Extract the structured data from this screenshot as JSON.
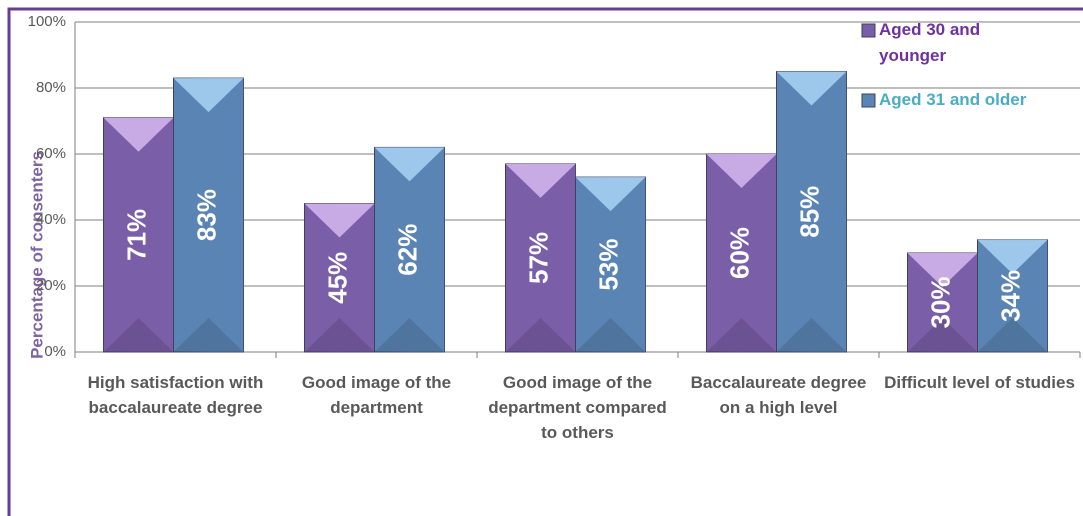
{
  "chart_data": {
    "type": "bar",
    "y_label": "Percentage of consenters",
    "categories": [
      "High satisfaction with baccalaureate degree",
      "Good image of the department",
      "Good image of the department compared to others",
      "Baccalaureate degree on a high level",
      "Difficult level of studies"
    ],
    "series": [
      {
        "name": "Aged 30 and younger",
        "color": "#7a5ea8",
        "values": [
          71,
          45,
          57,
          60,
          30
        ],
        "value_labels": [
          "71%",
          "45%",
          "57%",
          "60%",
          "30%"
        ]
      },
      {
        "name": "Aged 31 and older",
        "color": "#5a84b3",
        "values": [
          83,
          62,
          53,
          85,
          34
        ],
        "value_labels": [
          "83%",
          "62%",
          "53%",
          "85%",
          "34%"
        ]
      }
    ],
    "ylim": [
      0,
      100
    ],
    "yticks": [
      {
        "value": 0,
        "label": "0%"
      },
      {
        "value": 20,
        "label": "20%"
      },
      {
        "value": 40,
        "label": "40%"
      },
      {
        "value": 60,
        "label": "60%"
      },
      {
        "value": 80,
        "label": "80%"
      },
      {
        "value": 100,
        "label": "100%"
      }
    ],
    "grid": true,
    "legend": "top-right"
  }
}
